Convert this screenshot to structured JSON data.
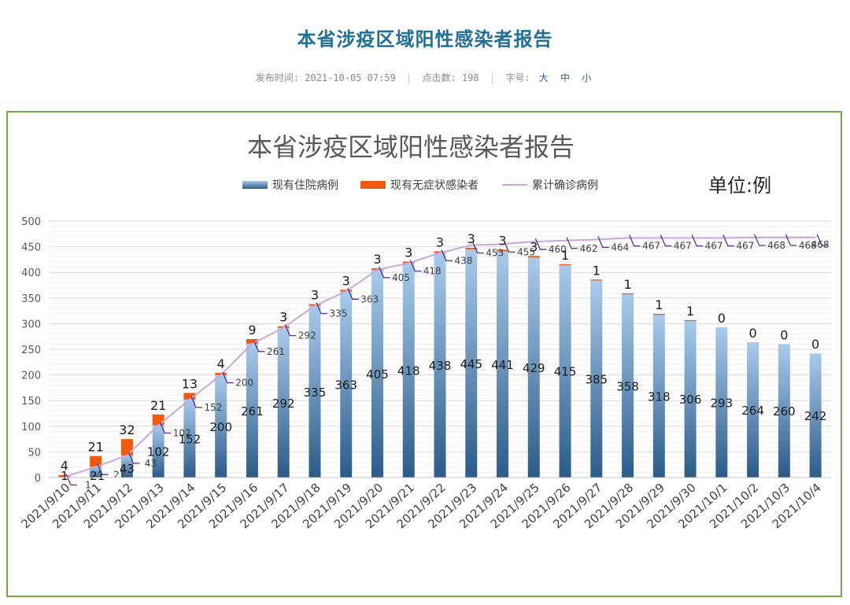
{
  "article": {
    "title": "本省涉疫区域阳性感染者报告",
    "meta": {
      "publish_label": "发布时间:",
      "publish_time": "2021-10-05 07:59",
      "clicks_label": "点击数:",
      "clicks": "198",
      "font_label": "字号:",
      "font_large": "大",
      "font_medium": "中",
      "font_small": "小"
    }
  },
  "colors": {
    "bar_top": "#a9cbec",
    "bar_bottom": "#2c5b88",
    "asymptomatic": "#f05a0e",
    "cumulative_line": "#c9a8d8",
    "label_line": "#5b2c91",
    "frame": "#70ad47",
    "title": "#1f6f97"
  },
  "chart_data": {
    "type": "bar",
    "title": "本省涉疫区域阳性感染者报告",
    "unit_label": "单位:例",
    "legend_position": "top",
    "categories": [
      "2021/9/10",
      "2021/9/11",
      "2021/9/12",
      "2021/9/13",
      "2021/9/14",
      "2021/9/15",
      "2021/9/16",
      "2021/9/17",
      "2021/9/18",
      "2021/9/19",
      "2021/9/20",
      "2021/9/21",
      "2021/9/22",
      "2021/9/23",
      "2021/9/24",
      "2021/9/25",
      "2021/9/26",
      "2021/9/27",
      "2021/9/28",
      "2021/9/29",
      "2021/9/30",
      "2021/10/1",
      "2021/10/2",
      "2021/10/3",
      "2021/10/4"
    ],
    "series": [
      {
        "name": "现有住院病例",
        "type": "stacked-bar",
        "values": [
          1,
          21,
          43,
          102,
          152,
          200,
          261,
          292,
          335,
          363,
          405,
          418,
          438,
          445,
          441,
          429,
          415,
          385,
          358,
          318,
          306,
          293,
          264,
          260,
          242
        ]
      },
      {
        "name": "现有无症状感染者",
        "type": "stacked-bar",
        "values": [
          4,
          21,
          32,
          21,
          13,
          4,
          9,
          3,
          3,
          3,
          3,
          3,
          3,
          3,
          3,
          3,
          1,
          1,
          1,
          1,
          1,
          0,
          0,
          0,
          0
        ]
      },
      {
        "name": "累计确诊病例",
        "type": "line",
        "values": [
          1,
          21,
          43,
          102,
          152,
          200,
          261,
          292,
          335,
          363,
          405,
          418,
          438,
          453,
          455,
          460,
          462,
          464,
          467,
          467,
          467,
          467,
          468,
          468,
          468
        ]
      }
    ],
    "ylim": [
      0,
      500
    ],
    "yticks": [
      0,
      50,
      100,
      150,
      200,
      250,
      300,
      350,
      400,
      450,
      500
    ],
    "grid": true
  }
}
